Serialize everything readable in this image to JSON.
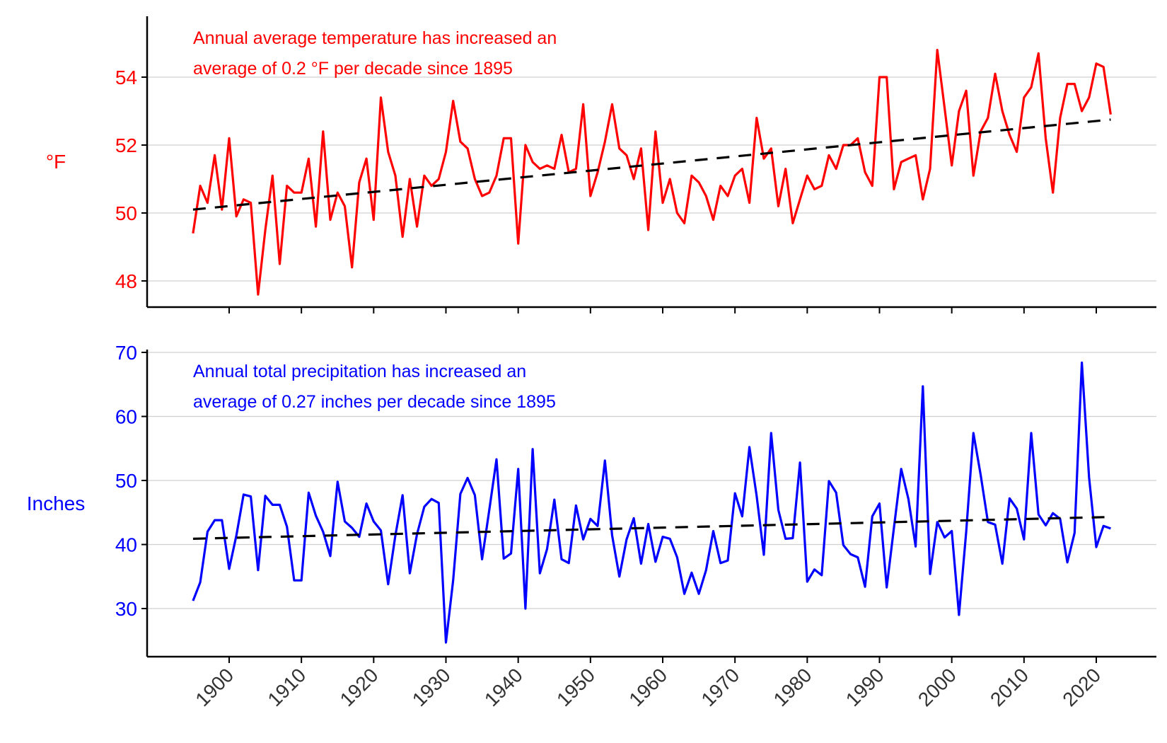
{
  "chart_data": [
    {
      "type": "line",
      "ylabel": "°F",
      "annotation": [
        "Annual average temperature has increased an",
        "average of 0.2 °F per decade since 1895"
      ],
      "color": "#ff0000",
      "trend_color": "#000000",
      "xlim": [
        1890,
        2028
      ],
      "ylim": [
        47.2,
        55.6
      ],
      "yticks": [
        48,
        50,
        52,
        54
      ],
      "grid": "horizontal",
      "x_start": 1895,
      "values": [
        49.4,
        50.8,
        50.3,
        51.7,
        50.1,
        52.2,
        49.9,
        50.4,
        50.3,
        47.6,
        49.5,
        51.1,
        48.5,
        50.8,
        50.6,
        50.6,
        51.6,
        49.6,
        52.4,
        49.8,
        50.6,
        50.2,
        48.4,
        50.9,
        51.6,
        49.8,
        53.4,
        51.8,
        51.1,
        49.3,
        51.0,
        49.6,
        51.1,
        50.8,
        51.0,
        51.8,
        53.3,
        52.1,
        51.9,
        51.0,
        50.5,
        50.6,
        51.1,
        52.2,
        52.2,
        49.1,
        52.0,
        51.5,
        51.3,
        51.4,
        51.3,
        52.3,
        51.2,
        51.3,
        53.2,
        50.5,
        51.2,
        52.1,
        53.2,
        51.9,
        51.7,
        51.0,
        51.9,
        49.5,
        52.4,
        50.3,
        51.0,
        50.0,
        49.7,
        51.1,
        50.9,
        50.5,
        49.8,
        50.8,
        50.5,
        51.1,
        51.3,
        50.3,
        52.8,
        51.6,
        51.9,
        50.2,
        51.3,
        49.7,
        50.4,
        51.1,
        50.7,
        50.8,
        51.7,
        51.3,
        52.0,
        52.0,
        52.2,
        51.2,
        50.8,
        54.0,
        54.0,
        50.7,
        51.5,
        51.6,
        51.7,
        50.4,
        51.3,
        54.8,
        53.1,
        51.4,
        53.0,
        53.6,
        51.1,
        52.4,
        52.8,
        54.1,
        53.0,
        52.3,
        51.8,
        53.4,
        53.7,
        54.7,
        52.2,
        50.6,
        52.8,
        53.8,
        53.8,
        53.0,
        53.4,
        54.4,
        54.3,
        52.9
      ],
      "trend": {
        "x": [
          1895,
          2022
        ],
        "y": [
          50.1,
          52.75
        ]
      }
    },
    {
      "type": "line",
      "ylabel": "Inches",
      "annotation": [
        "Annual total precipitation has increased an",
        "average of 0.27 inches per decade since 1895"
      ],
      "color": "#0000ff",
      "trend_color": "#000000",
      "xlim": [
        1890,
        2028
      ],
      "ylim": [
        22.5,
        70.5
      ],
      "yticks": [
        30,
        40,
        50,
        60,
        70
      ],
      "xticks": [
        1900,
        1910,
        1920,
        1930,
        1940,
        1950,
        1960,
        1970,
        1980,
        1990,
        2000,
        2010,
        2020
      ],
      "grid": "horizontal",
      "x_start": 1895,
      "values": [
        31.2,
        34.1,
        42.0,
        43.8,
        43.8,
        36.2,
        41.4,
        47.8,
        47.5,
        36.0,
        47.6,
        46.2,
        46.2,
        42.8,
        34.4,
        34.4,
        48.1,
        44.5,
        42.0,
        38.2,
        49.8,
        43.6,
        42.6,
        41.2,
        46.4,
        43.6,
        42.2,
        33.8,
        41.4,
        47.7,
        35.5,
        41.6,
        45.9,
        47.1,
        46.5,
        24.7,
        34.4,
        47.9,
        50.4,
        47.7,
        37.7,
        45.4,
        53.3,
        37.8,
        38.6,
        51.8,
        30.0,
        54.9,
        35.5,
        39.3,
        47.0,
        37.7,
        37.1,
        46.1,
        40.8,
        44.0,
        42.9,
        53.1,
        41.4,
        35.0,
        40.8,
        44.1,
        37.0,
        43.2,
        37.3,
        41.2,
        40.9,
        38.0,
        32.3,
        35.6,
        32.3,
        36.0,
        42.1,
        37.1,
        37.5,
        48.0,
        44.4,
        55.2,
        47.6,
        38.4,
        57.4,
        45.4,
        40.9,
        41.0,
        52.8,
        34.2,
        36.1,
        35.2,
        49.9,
        48.1,
        39.9,
        38.5,
        38.0,
        33.4,
        44.4,
        46.4,
        33.3,
        42.6,
        51.8,
        47.1,
        39.7,
        64.7,
        35.4,
        43.5,
        41.1,
        42.1,
        29.0,
        42.0,
        57.4,
        50.9,
        43.5,
        43.1,
        37.0,
        47.2,
        45.6,
        40.8,
        57.4,
        44.7,
        43.0,
        44.9,
        44.0,
        37.2,
        41.8,
        68.4,
        50.5,
        39.6,
        42.9,
        42.5
      ],
      "trend": {
        "x": [
          1895,
          2022
        ],
        "y": [
          40.9,
          44.3
        ]
      }
    }
  ]
}
